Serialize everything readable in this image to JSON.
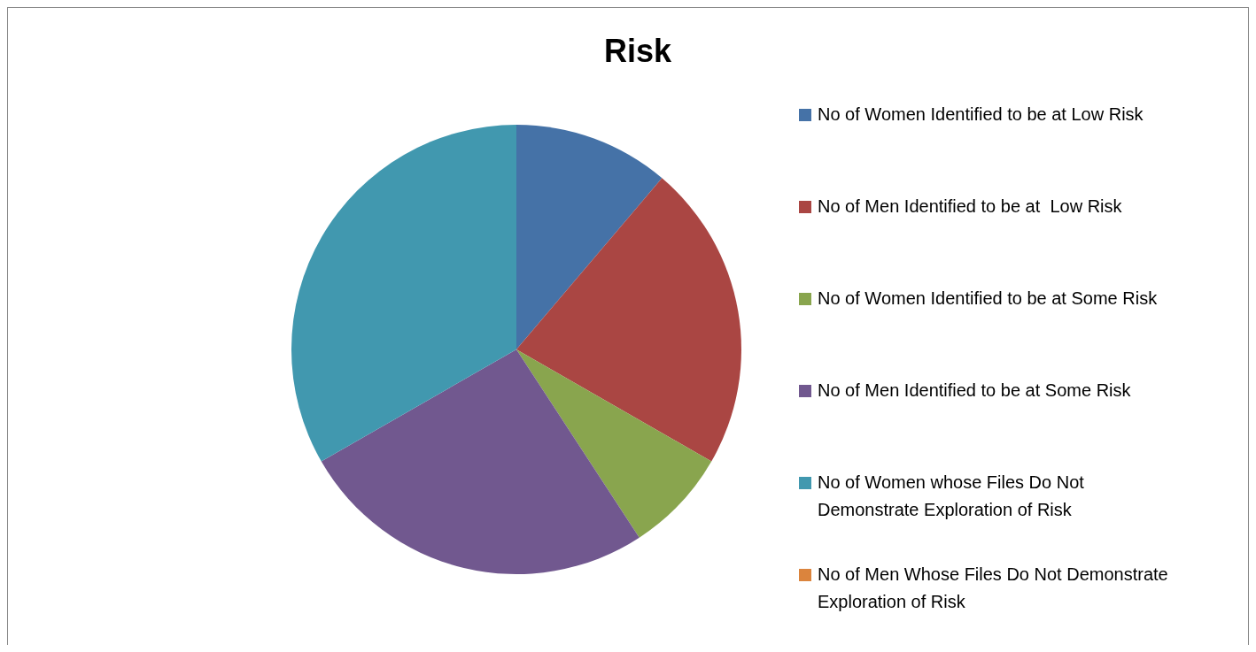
{
  "chart_data": {
    "type": "pie",
    "title": "Risk",
    "categories": [
      "No of Women Identified to be at Low Risk",
      "No of Men Identified to be at  Low Risk",
      "No of Women Identified to be at Some Risk",
      "No of Men Identified to be at Some Risk",
      "No of Women whose Files Do Not Demonstrate Exploration of Risk",
      "No of Men Whose Files Do Not Demonstrate Exploration of Risk"
    ],
    "values": [
      11.2,
      22.1,
      7.5,
      25.9,
      33.3,
      0
    ],
    "colors": [
      "#4572a7",
      "#aa4643",
      "#89a54e",
      "#71588f",
      "#4198af",
      "#db843d"
    ],
    "legend": "right"
  }
}
